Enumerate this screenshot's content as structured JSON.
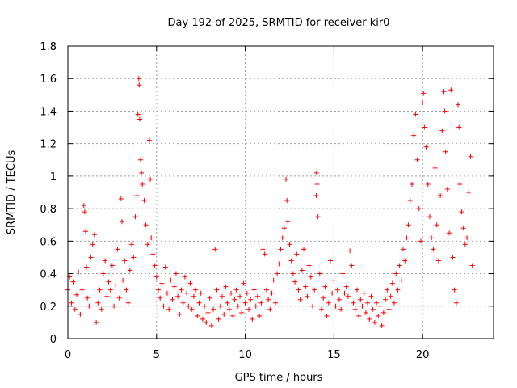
{
  "chart_data": {
    "type": "scatter",
    "title": "Day 192 of 2025, SRMTID for receiver kir0",
    "xlabel": "GPS time / hours",
    "ylabel": "SRMTID / TECUs",
    "xlim": [
      0,
      24
    ],
    "ylim": [
      0,
      1.8
    ],
    "xticks": [
      0,
      5,
      10,
      15,
      20
    ],
    "xtick_labels": [
      "0",
      "5",
      "10",
      "15",
      "20"
    ],
    "yticks": [
      0,
      0.2,
      0.4,
      0.6,
      0.8,
      1.0,
      1.2,
      1.4,
      1.6,
      1.8
    ],
    "ytick_labels": [
      "0",
      "0.2",
      "0.4",
      "0.6",
      "0.8",
      "1",
      "1.2",
      "1.4",
      "1.6",
      "1.8"
    ],
    "grid": true,
    "marker": "plus",
    "colors": {
      "series": "#ff0000",
      "grid": "#a0a0a0",
      "axis": "#000000"
    },
    "series": [
      {
        "name": "SRMTID",
        "points": [
          [
            0.0,
            0.3
          ],
          [
            0.1,
            0.38
          ],
          [
            0.2,
            0.22
          ],
          [
            0.3,
            0.35
          ],
          [
            0.4,
            0.18
          ],
          [
            0.5,
            0.27
          ],
          [
            0.6,
            0.41
          ],
          [
            0.7,
            0.15
          ],
          [
            0.8,
            0.3
          ],
          [
            0.9,
            0.82
          ],
          [
            0.95,
            0.78
          ],
          [
            1.0,
            0.66
          ],
          [
            1.05,
            0.44
          ],
          [
            1.1,
            0.25
          ],
          [
            1.2,
            0.2
          ],
          [
            1.3,
            0.5
          ],
          [
            1.4,
            0.58
          ],
          [
            1.5,
            0.64
          ],
          [
            1.6,
            0.1
          ],
          [
            1.7,
            0.22
          ],
          [
            1.8,
            0.3
          ],
          [
            1.9,
            0.18
          ],
          [
            2.0,
            0.4
          ],
          [
            2.1,
            0.48
          ],
          [
            2.2,
            0.26
          ],
          [
            2.3,
            0.35
          ],
          [
            2.4,
            0.3
          ],
          [
            2.5,
            0.45
          ],
          [
            2.6,
            0.2
          ],
          [
            2.7,
            0.33
          ],
          [
            2.8,
            0.55
          ],
          [
            2.9,
            0.25
          ],
          [
            3.0,
            0.86
          ],
          [
            3.05,
            0.72
          ],
          [
            3.1,
            0.36
          ],
          [
            3.2,
            0.48
          ],
          [
            3.3,
            0.3
          ],
          [
            3.4,
            0.22
          ],
          [
            3.5,
            0.42
          ],
          [
            3.6,
            0.58
          ],
          [
            3.7,
            0.5
          ],
          [
            3.8,
            0.75
          ],
          [
            3.9,
            0.88
          ],
          [
            3.95,
            1.38
          ],
          [
            4.0,
            1.6
          ],
          [
            4.02,
            1.56
          ],
          [
            4.05,
            1.35
          ],
          [
            4.1,
            1.1
          ],
          [
            4.15,
            1.02
          ],
          [
            4.2,
            0.95
          ],
          [
            4.3,
            0.85
          ],
          [
            4.4,
            0.7
          ],
          [
            4.5,
            0.58
          ],
          [
            4.6,
            1.22
          ],
          [
            4.65,
            0.98
          ],
          [
            4.7,
            0.62
          ],
          [
            4.8,
            0.52
          ],
          [
            4.9,
            0.45
          ],
          [
            5.0,
            0.38
          ],
          [
            5.1,
            0.3
          ],
          [
            5.2,
            0.25
          ],
          [
            5.3,
            0.34
          ],
          [
            5.4,
            0.2
          ],
          [
            5.5,
            0.44
          ],
          [
            5.6,
            0.28
          ],
          [
            5.7,
            0.18
          ],
          [
            5.8,
            0.36
          ],
          [
            5.9,
            0.24
          ],
          [
            6.0,
            0.32
          ],
          [
            6.1,
            0.4
          ],
          [
            6.2,
            0.26
          ],
          [
            6.3,
            0.15
          ],
          [
            6.4,
            0.3
          ],
          [
            6.5,
            0.22
          ],
          [
            6.6,
            0.38
          ],
          [
            6.7,
            0.28
          ],
          [
            6.8,
            0.2
          ],
          [
            6.9,
            0.34
          ],
          [
            7.0,
            0.18
          ],
          [
            7.1,
            0.26
          ],
          [
            7.2,
            0.3
          ],
          [
            7.3,
            0.14
          ],
          [
            7.4,
            0.22
          ],
          [
            7.5,
            0.28
          ],
          [
            7.6,
            0.12
          ],
          [
            7.7,
            0.2
          ],
          [
            7.8,
            0.1
          ],
          [
            7.9,
            0.16
          ],
          [
            8.0,
            0.25
          ],
          [
            8.1,
            0.08
          ],
          [
            8.2,
            0.18
          ],
          [
            8.3,
            0.55
          ],
          [
            8.4,
            0.3
          ],
          [
            8.5,
            0.12
          ],
          [
            8.6,
            0.2
          ],
          [
            8.7,
            0.26
          ],
          [
            8.8,
            0.15
          ],
          [
            8.9,
            0.32
          ],
          [
            9.0,
            0.22
          ],
          [
            9.1,
            0.18
          ],
          [
            9.2,
            0.28
          ],
          [
            9.3,
            0.14
          ],
          [
            9.4,
            0.24
          ],
          [
            9.5,
            0.3
          ],
          [
            9.6,
            0.2
          ],
          [
            9.7,
            0.26
          ],
          [
            9.8,
            0.16
          ],
          [
            9.9,
            0.34
          ],
          [
            10.0,
            0.22
          ],
          [
            10.1,
            0.28
          ],
          [
            10.2,
            0.18
          ],
          [
            10.3,
            0.24
          ],
          [
            10.4,
            0.12
          ],
          [
            10.5,
            0.3
          ],
          [
            10.6,
            0.2
          ],
          [
            10.7,
            0.26
          ],
          [
            10.8,
            0.14
          ],
          [
            10.9,
            0.22
          ],
          [
            11.0,
            0.55
          ],
          [
            11.1,
            0.52
          ],
          [
            11.2,
            0.3
          ],
          [
            11.3,
            0.24
          ],
          [
            11.4,
            0.18
          ],
          [
            11.5,
            0.28
          ],
          [
            11.6,
            0.36
          ],
          [
            11.7,
            0.22
          ],
          [
            11.8,
            0.4
          ],
          [
            11.9,
            0.46
          ],
          [
            12.0,
            0.55
          ],
          [
            12.1,
            0.62
          ],
          [
            12.2,
            0.68
          ],
          [
            12.3,
            0.98
          ],
          [
            12.35,
            0.85
          ],
          [
            12.4,
            0.72
          ],
          [
            12.5,
            0.58
          ],
          [
            12.6,
            0.48
          ],
          [
            12.7,
            0.4
          ],
          [
            12.8,
            0.35
          ],
          [
            12.9,
            0.52
          ],
          [
            13.0,
            0.3
          ],
          [
            13.1,
            0.24
          ],
          [
            13.2,
            0.42
          ],
          [
            13.3,
            0.55
          ],
          [
            13.4,
            0.32
          ],
          [
            13.5,
            0.26
          ],
          [
            13.6,
            0.45
          ],
          [
            13.7,
            0.38
          ],
          [
            13.8,
            0.2
          ],
          [
            13.9,
            0.3
          ],
          [
            14.0,
            0.88
          ],
          [
            14.02,
            1.02
          ],
          [
            14.05,
            0.95
          ],
          [
            14.1,
            0.75
          ],
          [
            14.2,
            0.4
          ],
          [
            14.3,
            0.18
          ],
          [
            14.4,
            0.25
          ],
          [
            14.5,
            0.32
          ],
          [
            14.6,
            0.14
          ],
          [
            14.7,
            0.22
          ],
          [
            14.8,
            0.48
          ],
          [
            14.9,
            0.28
          ],
          [
            15.0,
            0.36
          ],
          [
            15.1,
            0.2
          ],
          [
            15.2,
            0.3
          ],
          [
            15.3,
            0.24
          ],
          [
            15.4,
            0.18
          ],
          [
            15.5,
            0.4
          ],
          [
            15.6,
            0.28
          ],
          [
            15.7,
            0.32
          ],
          [
            15.8,
            0.26
          ],
          [
            15.9,
            0.54
          ],
          [
            16.0,
            0.45
          ],
          [
            16.1,
            0.22
          ],
          [
            16.2,
            0.18
          ],
          [
            16.3,
            0.3
          ],
          [
            16.4,
            0.14
          ],
          [
            16.5,
            0.24
          ],
          [
            16.6,
            0.2
          ],
          [
            16.7,
            0.28
          ],
          [
            16.8,
            0.16
          ],
          [
            16.9,
            0.22
          ],
          [
            17.0,
            0.12
          ],
          [
            17.1,
            0.26
          ],
          [
            17.2,
            0.18
          ],
          [
            17.3,
            0.1
          ],
          [
            17.4,
            0.22
          ],
          [
            17.5,
            0.14
          ],
          [
            17.6,
            0.2
          ],
          [
            17.7,
            0.08
          ],
          [
            17.8,
            0.16
          ],
          [
            17.9,
            0.24
          ],
          [
            18.0,
            0.3
          ],
          [
            18.1,
            0.18
          ],
          [
            18.2,
            0.26
          ],
          [
            18.3,
            0.34
          ],
          [
            18.4,
            0.22
          ],
          [
            18.5,
            0.4
          ],
          [
            18.6,
            0.3
          ],
          [
            18.7,
            0.45
          ],
          [
            18.8,
            0.36
          ],
          [
            18.9,
            0.55
          ],
          [
            19.0,
            0.48
          ],
          [
            19.1,
            0.62
          ],
          [
            19.2,
            0.7
          ],
          [
            19.3,
            0.85
          ],
          [
            19.4,
            0.95
          ],
          [
            19.5,
            1.25
          ],
          [
            19.6,
            1.38
          ],
          [
            19.7,
            1.1
          ],
          [
            19.8,
            0.8
          ],
          [
            19.9,
            0.6
          ],
          [
            20.0,
            1.45
          ],
          [
            20.05,
            1.51
          ],
          [
            20.1,
            1.3
          ],
          [
            20.2,
            1.18
          ],
          [
            20.3,
            0.95
          ],
          [
            20.4,
            0.75
          ],
          [
            20.5,
            0.62
          ],
          [
            20.6,
            0.55
          ],
          [
            20.7,
            1.05
          ],
          [
            20.8,
            0.7
          ],
          [
            20.9,
            0.48
          ],
          [
            21.0,
            0.88
          ],
          [
            21.1,
            1.28
          ],
          [
            21.2,
            1.52
          ],
          [
            21.25,
            1.4
          ],
          [
            21.3,
            1.15
          ],
          [
            21.4,
            0.92
          ],
          [
            21.5,
            0.65
          ],
          [
            21.6,
            1.53
          ],
          [
            21.65,
            1.32
          ],
          [
            21.7,
            0.5
          ],
          [
            21.8,
            0.3
          ],
          [
            21.9,
            0.22
          ],
          [
            22.0,
            1.44
          ],
          [
            22.05,
            1.3
          ],
          [
            22.1,
            0.95
          ],
          [
            22.2,
            0.78
          ],
          [
            22.3,
            0.68
          ],
          [
            22.4,
            0.58
          ],
          [
            22.5,
            0.62
          ],
          [
            22.6,
            0.9
          ],
          [
            22.7,
            1.12
          ],
          [
            22.8,
            0.45
          ]
        ]
      }
    ]
  }
}
